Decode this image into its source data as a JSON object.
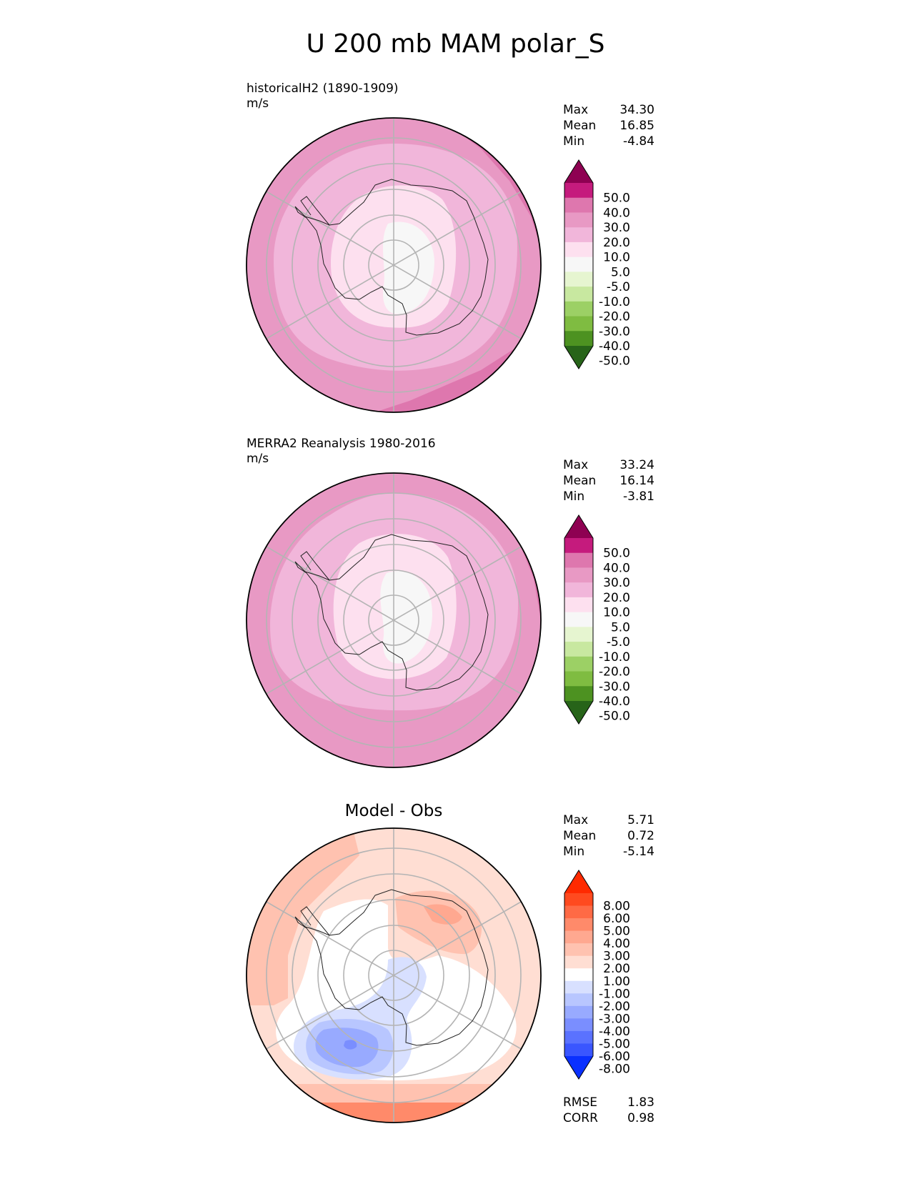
{
  "title": "U 200 mb MAM polar_S",
  "chart_data": [
    {
      "type": "heatmap",
      "projection": "south-polar-stereographic",
      "title_line1": "historicalH2 (1890-1909)",
      "title_line2": "m/s",
      "stats": {
        "labels": [
          "Max",
          "Mean",
          "Min"
        ],
        "values": [
          "34.30",
          "16.85",
          "-4.84"
        ]
      },
      "colorbar": {
        "levels": [
          "50.0",
          "40.0",
          "30.0",
          "20.0",
          "10.0",
          "5.0",
          "-5.0",
          "-10.0",
          "-20.0",
          "-30.0",
          "-40.0",
          "-50.0"
        ],
        "colors": [
          "#8e0152",
          "#c51b7d",
          "#de77ae",
          "#e899c4",
          "#f1b6da",
          "#fde0ef",
          "#f7f7f7",
          "#e6f5d0",
          "#c8e8a0",
          "#9cd065",
          "#7fbc41",
          "#4d9221",
          "#276419"
        ]
      },
      "field_zones": [
        {
          "range": "20 to 30",
          "color": "#e899c4"
        },
        {
          "range": "10 to 20",
          "color": "#f1b6da"
        },
        {
          "range": "5 to 10",
          "color": "#fde0ef"
        },
        {
          "range": "-5 to 5",
          "color": "#f7f7f7"
        },
        {
          "range": "30 to 40",
          "color": "#de77ae"
        }
      ]
    },
    {
      "type": "heatmap",
      "projection": "south-polar-stereographic",
      "title_line1": "MERRA2 Reanalysis 1980-2016",
      "title_line2": "m/s",
      "stats": {
        "labels": [
          "Max",
          "Mean",
          "Min"
        ],
        "values": [
          "33.24",
          "16.14",
          "-3.81"
        ]
      },
      "colorbar": {
        "levels": [
          "50.0",
          "40.0",
          "30.0",
          "20.0",
          "10.0",
          "5.0",
          "-5.0",
          "-10.0",
          "-20.0",
          "-30.0",
          "-40.0",
          "-50.0"
        ],
        "colors": [
          "#8e0152",
          "#c51b7d",
          "#de77ae",
          "#e899c4",
          "#f1b6da",
          "#fde0ef",
          "#f7f7f7",
          "#e6f5d0",
          "#c8e8a0",
          "#9cd065",
          "#7fbc41",
          "#4d9221",
          "#276419"
        ]
      },
      "field_zones": [
        {
          "range": "20 to 30",
          "color": "#e899c4"
        },
        {
          "range": "10 to 20",
          "color": "#f1b6da"
        },
        {
          "range": "5 to 10",
          "color": "#fde0ef"
        },
        {
          "range": "-5 to 5",
          "color": "#f7f7f7"
        },
        {
          "range": "30 to 40",
          "color": "#de77ae"
        }
      ]
    },
    {
      "type": "heatmap",
      "projection": "south-polar-stereographic",
      "center_title": "Model - Obs",
      "stats": {
        "labels": [
          "Max",
          "Mean",
          "Min"
        ],
        "values": [
          "5.71",
          "0.72",
          "-5.14"
        ]
      },
      "colorbar": {
        "levels": [
          "8.00",
          "6.00",
          "5.00",
          "4.00",
          "3.00",
          "2.00",
          "1.00",
          "-1.00",
          "-2.00",
          "-3.00",
          "-4.00",
          "-5.00",
          "-6.00",
          "-8.00"
        ],
        "colors": [
          "#ff2a00",
          "#ff4a1f",
          "#ff6a45",
          "#ff8a6a",
          "#ffa890",
          "#ffc2b0",
          "#ffded3",
          "#ffffff",
          "#d8e0ff",
          "#b8c6ff",
          "#98aaff",
          "#7a8eff",
          "#5a72ff",
          "#3a56ff",
          "#0a30ff"
        ]
      },
      "error_stats": {
        "labels": [
          "RMSE",
          "CORR"
        ],
        "values": [
          "1.83",
          "0.98"
        ]
      }
    }
  ]
}
